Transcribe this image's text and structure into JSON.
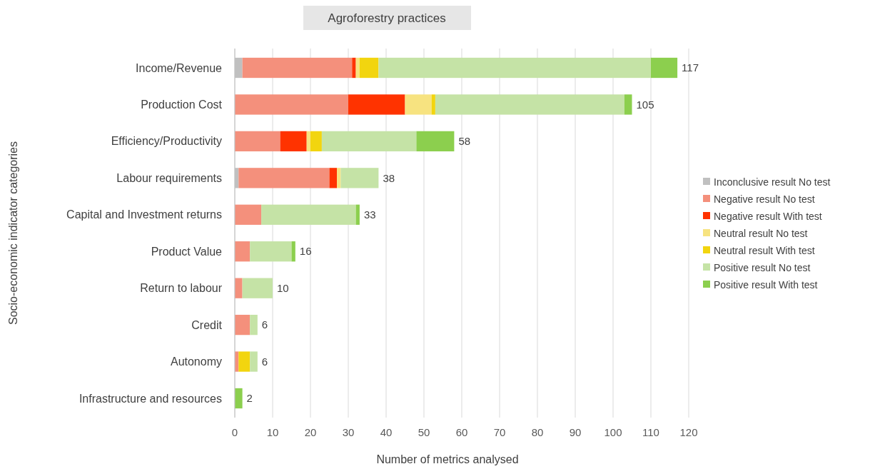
{
  "chart_data": {
    "type": "bar",
    "orientation": "horizontal",
    "stacked": true,
    "title": "Agroforestry practices",
    "xlabel": "Number of metrics analysed",
    "ylabel": "Socio-economic indicator categories",
    "categories": [
      "Income/Revenue",
      "Production Cost",
      "Efficiency/Productivity",
      "Labour requirements",
      "Capital and Investment returns",
      "Product Value",
      "Return to labour",
      "Credit",
      "Autonomy",
      "Infrastructure and resources"
    ],
    "series": [
      {
        "name": "Inconclusive result No test",
        "color": "#c0c0c0",
        "values": [
          2,
          0,
          0,
          1,
          0,
          0,
          0,
          0,
          0,
          0
        ]
      },
      {
        "name": "Negative result No test",
        "color": "#f4907c",
        "values": [
          29,
          30,
          12,
          24,
          7,
          4,
          2,
          4,
          1,
          0
        ]
      },
      {
        "name": "Negative result With test",
        "color": "#ff3300",
        "values": [
          1,
          15,
          7,
          2,
          0,
          0,
          0,
          0,
          0,
          0
        ]
      },
      {
        "name": "Neutral result No test",
        "color": "#f7e380",
        "values": [
          1,
          7,
          1,
          1,
          0,
          0,
          0,
          0,
          0,
          0
        ]
      },
      {
        "name": "Neutral result With test",
        "color": "#f2d50f",
        "values": [
          5,
          1,
          3,
          0,
          0,
          0,
          0,
          0,
          3,
          0
        ]
      },
      {
        "name": "Positive result No test",
        "color": "#c5e3a6",
        "values": [
          72,
          50,
          25,
          10,
          25,
          11,
          8,
          2,
          2,
          0
        ]
      },
      {
        "name": "Positive result With test",
        "color": "#8ccf4e",
        "values": [
          7,
          2,
          10,
          0,
          1,
          1,
          0,
          0,
          0,
          2
        ]
      }
    ],
    "totals": [
      "117",
      "105",
      "58",
      "38",
      "33",
      "16",
      "10",
      "6",
      "6",
      "2"
    ],
    "xlim": [
      0,
      120
    ],
    "xticks": [
      0,
      10,
      20,
      30,
      40,
      50,
      60,
      70,
      80,
      90,
      100,
      110,
      120
    ],
    "grid": "x",
    "legend": "right"
  }
}
